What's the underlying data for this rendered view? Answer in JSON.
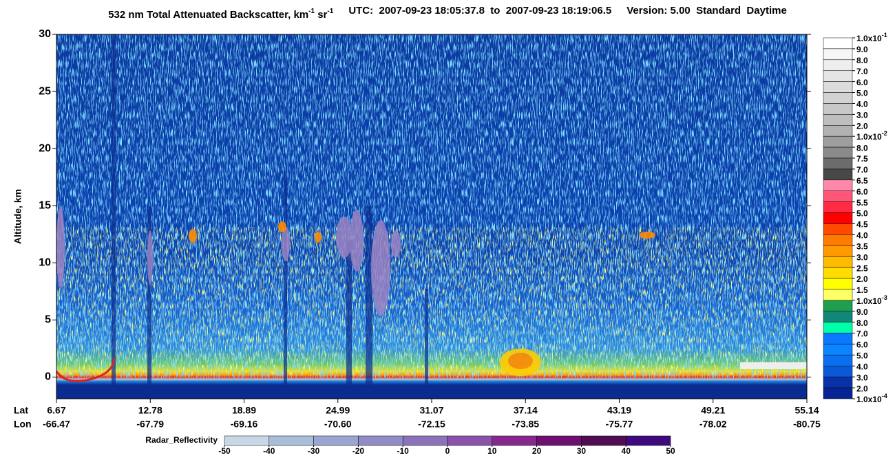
{
  "chart_data": {
    "type": "curtain",
    "title_parts": [
      "532 nm Total Attenuated Backscatter, km",
      "-1",
      " sr",
      "-1"
    ],
    "utc": "UTC:  2007-09-23 18:05:37.8  to  2007-09-23 18:19:06.5",
    "version": "Version: 5.00  Standard  Daytime",
    "y_label": "Altitude, km",
    "ylim": [
      -1.9,
      30
    ],
    "yticks": [
      0,
      5,
      10,
      15,
      20,
      25,
      30
    ],
    "lat_label": "Lat",
    "lon_label": "Lon",
    "lat": [
      "6.67",
      "12.78",
      "18.89",
      "24.99",
      "31.07",
      "37.14",
      "43.19",
      "49.21",
      "55.14"
    ],
    "lon": [
      "-66.47",
      "-67.79",
      "-69.16",
      "-70.60",
      "-72.15",
      "-73.85",
      "-75.77",
      "-78.02",
      "-80.75"
    ],
    "colorbar": {
      "labels": [
        {
          "base": "1.0x10",
          "exp": "-1"
        },
        "9.0",
        "8.0",
        "7.0",
        "6.0",
        "5.0",
        "4.0",
        "3.0",
        "2.0",
        {
          "base": "1.0x10",
          "exp": "-2"
        },
        "8.0",
        "7.5",
        "7.0",
        "6.5",
        "6.0",
        "5.5",
        "5.0",
        "4.5",
        "4.0",
        "3.5",
        "3.0",
        "2.5",
        "2.0",
        "1.5",
        {
          "base": "1.0x10",
          "exp": "-3"
        },
        "9.0",
        "8.0",
        "7.0",
        "6.0",
        "5.0",
        "4.0",
        "3.0",
        "2.0",
        {
          "base": "1.0x10",
          "exp": "-4"
        }
      ],
      "colors": [
        "#ffffff",
        "#f6f6f6",
        "#eeeeee",
        "#e5e5e5",
        "#dcdcdc",
        "#d2d2d2",
        "#c8c8c8",
        "#bebebe",
        "#b2b2b2",
        "#9e9e9e",
        "#8a8a8a",
        "#6c6c6c",
        "#484848",
        "#ff88aa",
        "#ff5577",
        "#ff2a44",
        "#ff0000",
        "#ff4a00",
        "#ff7a00",
        "#ff9a00",
        "#ffbb00",
        "#ffdd00",
        "#ffff00",
        "#ffff66",
        "#1f9e50",
        "#118877",
        "#00ffaa",
        "#0a78ff",
        "#0a84ff",
        "#0a70ee",
        "#0a5ad8",
        "#0a32a8",
        "#082494"
      ]
    },
    "radar": {
      "label": "Radar_Reflectivity",
      "lim": [
        -50,
        50
      ],
      "ticks": [
        -50,
        -40,
        -30,
        -20,
        -10,
        0,
        10,
        20,
        30,
        40,
        50
      ],
      "colors": [
        "#c8d7e5",
        "#a9bcd8",
        "#9aa6d0",
        "#8f8cc6",
        "#8c72b8",
        "#8a52a8",
        "#86288c",
        "#6e1070",
        "#520c52",
        "#3e0a7e"
      ]
    }
  }
}
